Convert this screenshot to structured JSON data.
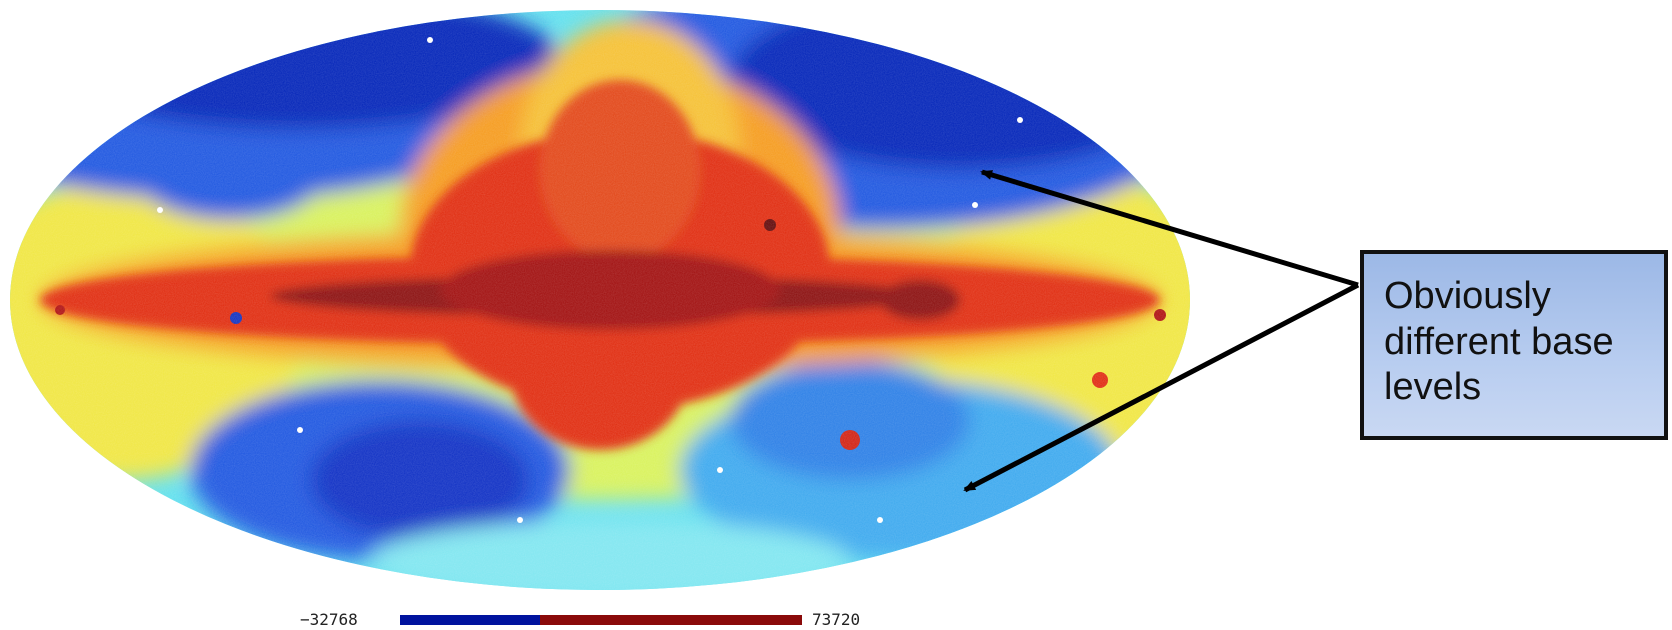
{
  "callout": {
    "text": "Obviously different base levels"
  },
  "colorbar": {
    "min_label": "−32768",
    "max_label": "73720",
    "low_color": "#00139e",
    "high_color": "#8a0a0a"
  },
  "colors": {
    "map_deep_blue": "#0622b8",
    "map_blue": "#1e55e0",
    "map_cyan": "#3fd0f0",
    "map_yellow": "#f2f23a",
    "map_orange": "#f59a1a",
    "map_red": "#e02a10",
    "map_dark_red": "#8a0a0a",
    "callout_fill": "#b3c8ee",
    "arrow": "#000000"
  }
}
